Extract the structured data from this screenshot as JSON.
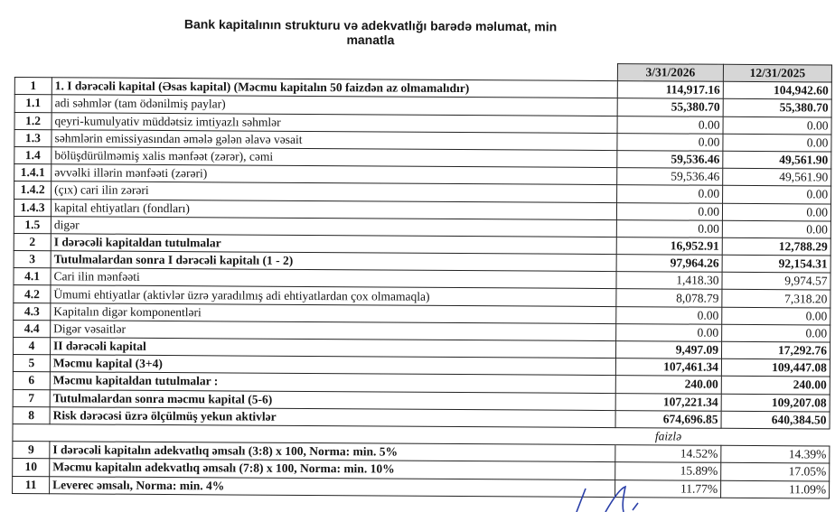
{
  "title": "Bank kapitalının strukturu və adekvatlığı barədə məlumat, min manatla",
  "columns": [
    "3/31/2026",
    "12/31/2025"
  ],
  "rows": [
    {
      "num": "1",
      "label": "1. I dərəcəli kapital (Əsas kapital) (Məcmu kapitalın 50 faizdən  az olmamalıdır)",
      "v1": "114,917.16",
      "v2": "104,942.60",
      "bold": true,
      "bold_vals": true
    },
    {
      "num": "1.1",
      "label": "adi səhmlər (tam ödənilmiş paylar)",
      "v1": "55,380.70",
      "v2": "55,380.70",
      "bold": false,
      "bold_vals": true
    },
    {
      "num": "1.2",
      "label": "qeyri-kumulyativ müddətsiz imtiyazlı səhmlər",
      "v1": "0.00",
      "v2": "0.00",
      "bold": false,
      "bold_vals": false
    },
    {
      "num": "1.3",
      "label": "səhmlərin emissiyasından əmələ gələn  əlavə vəsait",
      "v1": "0.00",
      "v2": "0.00",
      "bold": false,
      "bold_vals": false
    },
    {
      "num": "1.4",
      "label": "bölüşdürülməmiş xalis mənfəət (zərər), cəmi",
      "v1": "59,536.46",
      "v2": "49,561.90",
      "bold": false,
      "bold_vals": true
    },
    {
      "num": "1.4.1",
      "label": "əvvəlki illərin mənfəəti (zərəri)",
      "v1": "59,536.46",
      "v2": "49,561.90",
      "bold": false,
      "bold_vals": false
    },
    {
      "num": "1.4.2",
      "label": "(çıx) cari ilin zərəri",
      "v1": "0.00",
      "v2": "0.00",
      "bold": false,
      "bold_vals": false
    },
    {
      "num": "1.4.3",
      "label": "kapital ehtiyatları (fondları)",
      "v1": "0.00",
      "v2": "0.00",
      "bold": false,
      "bold_vals": false
    },
    {
      "num": "1.5",
      "label": "digər",
      "v1": "0.00",
      "v2": "0.00",
      "bold": false,
      "bold_vals": false
    },
    {
      "num": "2",
      "label": "I dərəcəli kapitaldan  tutulmalar",
      "v1": "16,952.91",
      "v2": "12,788.29",
      "bold": true,
      "bold_vals": true
    },
    {
      "num": "3",
      "label": "Tutulmalardan  sonra I dərəcəli kapitalı (1 - 2)",
      "v1": "97,964.26",
      "v2": "92,154.31",
      "bold": true,
      "bold_vals": true
    },
    {
      "num": "4.1",
      "label": "Cari ilin mənfəəti",
      "v1": "1,418.30",
      "v2": "9,974.57",
      "bold": false,
      "bold_vals": false
    },
    {
      "num": "4.2",
      "label": "Ümumi ehtiyatlar (aktivlər üzrə yaradılmış adi ehtiyatlardan çox olmamaqla)",
      "v1": "8,078.79",
      "v2": "7,318.20",
      "bold": false,
      "bold_vals": false
    },
    {
      "num": "4.3",
      "label": "Kapitalın digər komponentləri",
      "v1": "0.00",
      "v2": "0.00",
      "bold": false,
      "bold_vals": false
    },
    {
      "num": "4.4",
      "label": "Digər vəsaitlər",
      "v1": "0.00",
      "v2": "0.00",
      "bold": false,
      "bold_vals": false
    },
    {
      "num": "4",
      "label": "II dərəcəli  kapital",
      "v1": "9,497.09",
      "v2": "17,292.76",
      "bold": true,
      "bold_vals": true
    },
    {
      "num": "5",
      "label": "Məcmu kapital (3+4)",
      "v1": "107,461.34",
      "v2": "109,447.08",
      "bold": true,
      "bold_vals": true
    },
    {
      "num": "6",
      "label": "Məcmu kapitaldan tutulmalar :",
      "v1": "240.00",
      "v2": "240.00",
      "bold": true,
      "bold_vals": true
    },
    {
      "num": "7",
      "label": "Tutulmalardan sonra məcmu kapital (5-6)",
      "v1": "107,221.34",
      "v2": "109,207.08",
      "bold": true,
      "bold_vals": true
    },
    {
      "num": "8",
      "label": "Risk dərəcəsi üzrə ölçülmüş  yekun aktivlər",
      "v1": "674,696.85",
      "v2": "640,384.50",
      "bold": true,
      "bold_vals": true
    }
  ],
  "percent_unit": "faizlə",
  "ratio_rows": [
    {
      "num": "9",
      "label": "I dərəcəli  kapitalın  adekvatlıq əmsalı (3:8) x 100, Norma: min. 5%",
      "v1": "14.52%",
      "v2": "14.39%"
    },
    {
      "num": "10",
      "label": "Məcmu kapitalın  adekvatlıq  əmsalı (7:8) x 100, Norma: min. 10%",
      "v1": "15.89%",
      "v2": "17.05%"
    },
    {
      "num": "11",
      "label": "Leverec əmsalı, Norma: min. 4%",
      "v1": "11.77%",
      "v2": "11.09%"
    }
  ],
  "colors": {
    "header_bg": "#d6d6d6",
    "signature": "#2a3fa8"
  }
}
